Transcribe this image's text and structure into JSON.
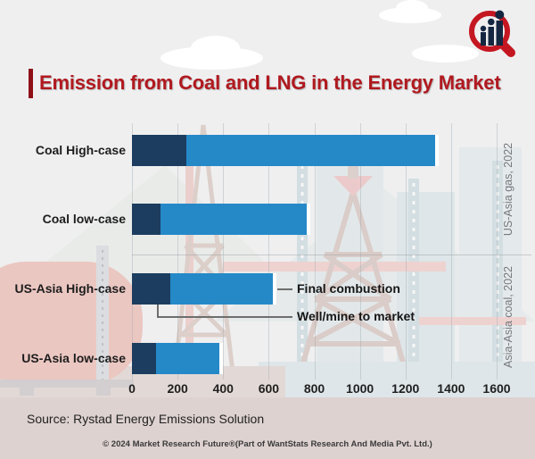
{
  "header": {
    "title": "Emission from Coal and LNG in the Energy Market"
  },
  "logo": {
    "name": "market-research-future-logo",
    "ring_color": "#c41722",
    "bars_color": "#152740"
  },
  "chart_data": {
    "type": "bar",
    "orientation": "horizontal",
    "stacked": true,
    "title": "Emission from Coal and LNG in the Energy Market",
    "categories": [
      "Coal High-case",
      "Coal low-case",
      "US-Asia High-case",
      "US-Asia low-case"
    ],
    "series": [
      {
        "name": "Well/mine to market",
        "color": "#1c3d5f",
        "values": [
          240,
          125,
          170,
          105
        ]
      },
      {
        "name": "Final combustion",
        "color": "#2589c8",
        "values": [
          1090,
          640,
          450,
          280
        ]
      }
    ],
    "totals": [
      1330,
      765,
      620,
      385
    ],
    "xlim": [
      0,
      1600
    ],
    "xticks": [
      "0",
      "200",
      "400",
      "600",
      "800",
      "1000",
      "1200",
      "1400",
      "1600"
    ],
    "grid": "vertical",
    "legend_position": "callout-annotations",
    "right_sections": [
      "US-Asia gas, 2022",
      "Asia-Asia coal, 2022"
    ]
  },
  "footer": {
    "source": "Source: Rystad Energy Emissions Solution",
    "copyright": "© 2024 Market Research Future®(Part of WantStats Research And Media Pvt. Ltd.)"
  }
}
